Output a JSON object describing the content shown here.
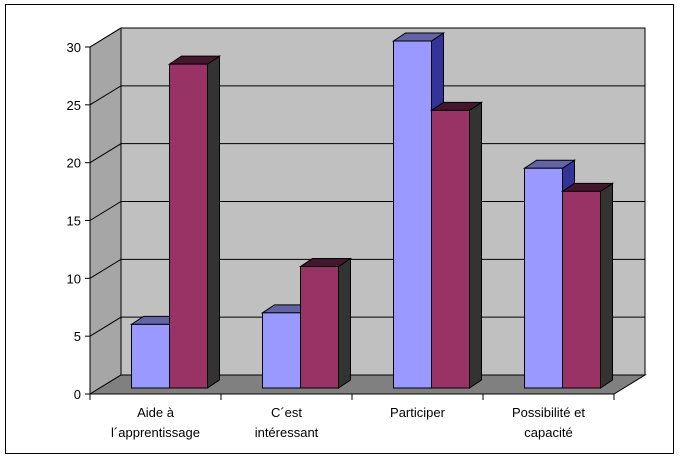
{
  "chart_data": {
    "type": "bar",
    "categories": [
      [
        "Aide à",
        "l´apprentissage"
      ],
      [
        "C´est",
        "intéressant"
      ],
      [
        "Participer"
      ],
      [
        "Possibilité et",
        "capacité"
      ]
    ],
    "series": [
      {
        "values": [
          5.5,
          6.5,
          30,
          19
        ],
        "color": "#9999ff"
      },
      {
        "values": [
          28,
          10.5,
          24,
          17
        ],
        "color": "#993366"
      }
    ],
    "ylim": [
      0,
      30
    ],
    "yticks": [
      0,
      5,
      10,
      15,
      20,
      25,
      30
    ],
    "grid": true,
    "legend": "none",
    "style": "3d-clustered",
    "wall_color": "#c0c0c0",
    "floor_color": "#808080"
  }
}
